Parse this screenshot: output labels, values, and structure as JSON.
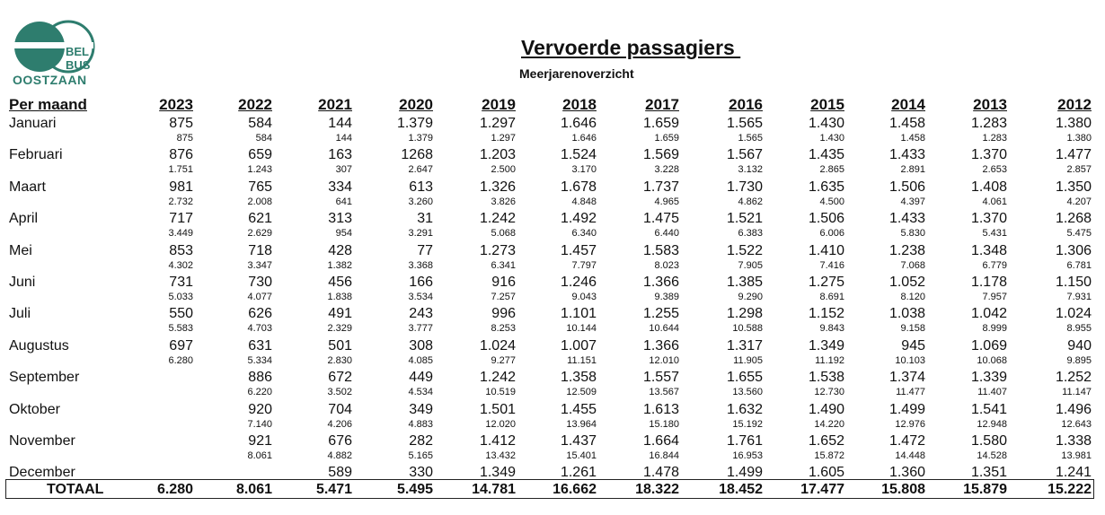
{
  "logo": {
    "line1": "BEL",
    "line2": "BUS",
    "line3": "OOSTZAAN",
    "color": "#2e7d6e"
  },
  "title": "Vervoerde passagiers ",
  "subtitle": "Meerjarenoverzicht",
  "row_header": "Per maand",
  "years": [
    "2023",
    "2022",
    "2021",
    "2020",
    "2019",
    "2018",
    "2017",
    "2016",
    "2015",
    "2014",
    "2013",
    "2012"
  ],
  "rows": [
    {
      "month": "Januari",
      "values": [
        "875",
        "584",
        "144",
        "1.379",
        "1.297",
        "1.646",
        "1.659",
        "1.565",
        "1.430",
        "1.458",
        "1.283",
        "1.380"
      ],
      "cumulative": [
        "875",
        "584",
        "144",
        "1.379",
        "1.297",
        "1.646",
        "1.659",
        "1.565",
        "1.430",
        "1.458",
        "1.283",
        "1.380"
      ]
    },
    {
      "month": "Februari",
      "values": [
        "876",
        "659",
        "163",
        "1268",
        "1.203",
        "1.524",
        "1.569",
        "1.567",
        "1.435",
        "1.433",
        "1.370",
        "1.477"
      ],
      "cumulative": [
        "1.751",
        "1.243",
        "307",
        "2.647",
        "2.500",
        "3.170",
        "3.228",
        "3.132",
        "2.865",
        "2.891",
        "2.653",
        "2.857"
      ]
    },
    {
      "month": "Maart",
      "values": [
        "981",
        "765",
        "334",
        "613",
        "1.326",
        "1.678",
        "1.737",
        "1.730",
        "1.635",
        "1.506",
        "1.408",
        "1.350"
      ],
      "cumulative": [
        "2.732",
        "2.008",
        "641",
        "3.260",
        "3.826",
        "4.848",
        "4.965",
        "4.862",
        "4.500",
        "4.397",
        "4.061",
        "4.207"
      ]
    },
    {
      "month": "April",
      "values": [
        "717",
        "621",
        "313",
        "31",
        "1.242",
        "1.492",
        "1.475",
        "1.521",
        "1.506",
        "1.433",
        "1.370",
        "1.268"
      ],
      "cumulative": [
        "3.449",
        "2.629",
        "954",
        "3.291",
        "5.068",
        "6.340",
        "6.440",
        "6.383",
        "6.006",
        "5.830",
        "5.431",
        "5.475"
      ]
    },
    {
      "month": "Mei",
      "values": [
        "853",
        "718",
        "428",
        "77",
        "1.273",
        "1.457",
        "1.583",
        "1.522",
        "1.410",
        "1.238",
        "1.348",
        "1.306"
      ],
      "cumulative": [
        "4.302",
        "3.347",
        "1.382",
        "3.368",
        "6.341",
        "7.797",
        "8.023",
        "7.905",
        "7.416",
        "7.068",
        "6.779",
        "6.781"
      ]
    },
    {
      "month": "Juni",
      "values": [
        "731",
        "730",
        "456",
        "166",
        "916",
        "1.246",
        "1.366",
        "1.385",
        "1.275",
        "1.052",
        "1.178",
        "1.150"
      ],
      "cumulative": [
        "5.033",
        "4.077",
        "1.838",
        "3.534",
        "7.257",
        "9.043",
        "9.389",
        "9.290",
        "8.691",
        "8.120",
        "7.957",
        "7.931"
      ]
    },
    {
      "month": "Juli",
      "values": [
        "550",
        "626",
        "491",
        "243",
        "996",
        "1.101",
        "1.255",
        "1.298",
        "1.152",
        "1.038",
        "1.042",
        "1.024"
      ],
      "cumulative": [
        "5.583",
        "4.703",
        "2.329",
        "3.777",
        "8.253",
        "10.144",
        "10.644",
        "10.588",
        "9.843",
        "9.158",
        "8.999",
        "8.955"
      ]
    },
    {
      "month": "Augustus",
      "values": [
        "697",
        "631",
        "501",
        "308",
        "1.024",
        "1.007",
        "1.366",
        "1.317",
        "1.349",
        "945",
        "1.069",
        "940"
      ],
      "cumulative": [
        "6.280",
        "5.334",
        "2.830",
        "4.085",
        "9.277",
        "11.151",
        "12.010",
        "11.905",
        "11.192",
        "10.103",
        "10.068",
        "9.895"
      ]
    },
    {
      "month": "September",
      "values": [
        "",
        "886",
        "672",
        "449",
        "1.242",
        "1.358",
        "1.557",
        "1.655",
        "1.538",
        "1.374",
        "1.339",
        "1.252"
      ],
      "cumulative": [
        "",
        "6.220",
        "3.502",
        "4.534",
        "10.519",
        "12.509",
        "13.567",
        "13.560",
        "12.730",
        "11.477",
        "11.407",
        "11.147"
      ]
    },
    {
      "month": "Oktober",
      "values": [
        "",
        "920",
        "704",
        "349",
        "1.501",
        "1.455",
        "1.613",
        "1.632",
        "1.490",
        "1.499",
        "1.541",
        "1.496"
      ],
      "cumulative": [
        "",
        "7.140",
        "4.206",
        "4.883",
        "12.020",
        "13.964",
        "15.180",
        "15.192",
        "14.220",
        "12.976",
        "12.948",
        "12.643"
      ]
    },
    {
      "month": "November",
      "values": [
        "",
        "921",
        "676",
        "282",
        "1.412",
        "1.437",
        "1.664",
        "1.761",
        "1.652",
        "1.472",
        "1.580",
        "1.338"
      ],
      "cumulative": [
        "",
        "8.061",
        "4.882",
        "5.165",
        "13.432",
        "15.401",
        "16.844",
        "16.953",
        "15.872",
        "14.448",
        "14.528",
        "13.981"
      ]
    },
    {
      "month": "December",
      "values": [
        "",
        "",
        "589",
        "330",
        "1.349",
        "1.261",
        "1.478",
        "1.499",
        "1.605",
        "1.360",
        "1.351",
        "1.241"
      ],
      "cumulative": [
        "",
        "",
        "",
        "",
        "",
        "",
        "",
        "",
        "",
        "",
        "",
        ""
      ]
    }
  ],
  "total_label": "TOTAAL",
  "totals": [
    "6.280",
    "8.061",
    "5.471",
    "5.495",
    "14.781",
    "16.662",
    "18.322",
    "18.452",
    "17.477",
    "15.808",
    "15.879",
    "15.222"
  ]
}
